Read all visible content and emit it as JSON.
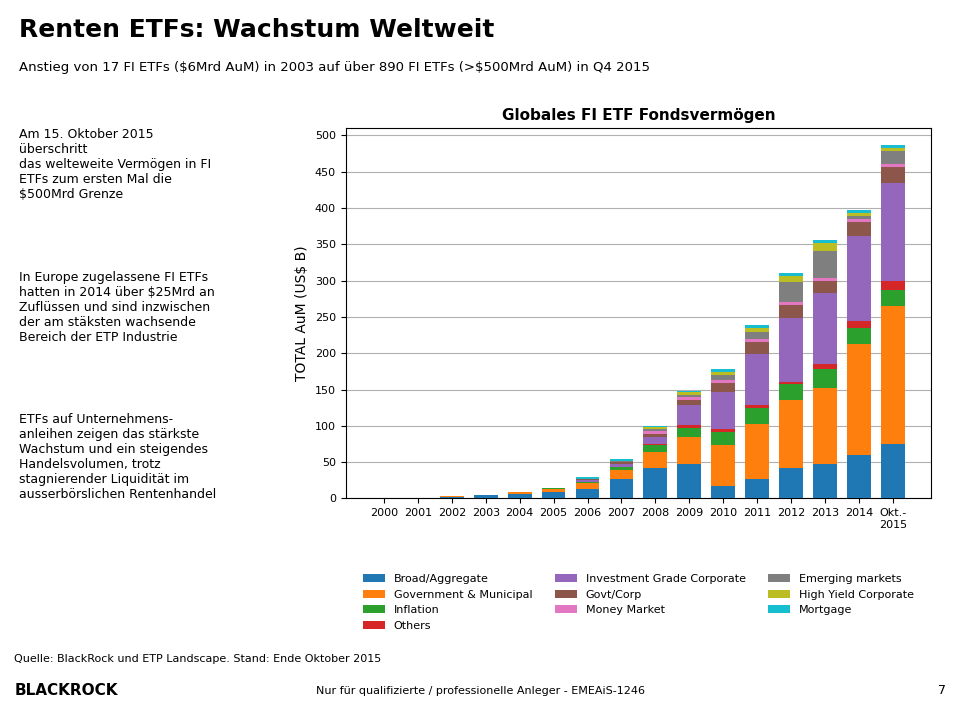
{
  "chart_data": {
    "type": "bar",
    "stacked": true,
    "title": "Renten ETFs: Wachstum Weltweit",
    "subtitle": "Anstieg von 17 FI ETFs ($6Mrd AuM) in 2003 auf über 890 FI ETFs (>$500Mrd AuM) in Q4 2015",
    "y_label": "TOTAL AuM (US$ B)",
    "annotations": [
      "Globales FI ETF Fondsvermögen",
      "Am 15. Oktober 2015\nüberschritt\ndas welteweite Vermögen in FI\nETFs zum ersten Mal die\n$500Mrd Grenze",
      "In Europe zugelassene FI ETFs\nhatten in 2014 über $25Mrd an\nZuflüssen und sind inzwischen\nder am stäksten wachsende\nBereich der ETP Industrie",
      "ETFs auf Unternehmens-\nanleihen zeigen das stärkste\nWachstum und ein steigendes\nHandelsvolumen, trotz\nstagnierender Liquidität im\nausserbörslichen Rentenhandel",
      "Quelle: BlackRock und ETP Landscape. Stand: Ende Oktober 2015",
      "BLACKROCK",
      "Nur für qualifizierte / professionelle Anleger - EMEAiS-1246",
      "7"
    ],
    "categories": [
      "2000",
      "2001",
      "2002",
      "2003",
      "2004",
      "2005",
      "2006",
      "2007",
      "2008",
      "2009",
      "2010",
      "2011",
      "2012",
      "2013",
      "2014",
      "Okt.-\n2015"
    ],
    "series": [
      {
        "name": "Broad/Aggregate",
        "values": [
          0.5,
          0.5,
          2,
          4,
          6,
          9,
          13,
          27,
          42,
          48,
          17,
          27,
          42,
          48,
          60,
          75
        ]
      },
      {
        "name": "Government & Municipal",
        "values": [
          0.5,
          0.5,
          1,
          1,
          3,
          4,
          8,
          12,
          22,
          36,
          57,
          76,
          93,
          104,
          153,
          190
        ]
      },
      {
        "name": "Inflation",
        "values": [
          0,
          0,
          0,
          0,
          0,
          1,
          2,
          4,
          9,
          13,
          18,
          22,
          22,
          26,
          22,
          22
        ]
      },
      {
        "name": "Others",
        "values": [
          0,
          0,
          0,
          0,
          0,
          0,
          0,
          0,
          2,
          4,
          4,
          4,
          4,
          7,
          9,
          12
        ]
      },
      {
        "name": "Investment Grade Corporate",
        "values": [
          0,
          0,
          0,
          0,
          0,
          1,
          3,
          5,
          10,
          27,
          50,
          70,
          88,
          98,
          118,
          135
        ]
      },
      {
        "name": "Govt/Corp",
        "values": [
          0,
          0,
          0,
          0,
          0,
          0,
          1,
          2,
          4,
          7,
          13,
          17,
          17,
          17,
          19,
          22
        ]
      },
      {
        "name": "Money Market",
        "values": [
          0,
          0,
          0,
          0,
          0,
          0,
          0,
          0,
          4,
          4,
          4,
          4,
          4,
          4,
          4,
          4
        ]
      },
      {
        "name": "Emerging markets",
        "values": [
          0,
          0,
          0,
          0,
          0,
          0,
          0,
          1,
          3,
          4,
          7,
          9,
          28,
          37,
          4,
          18
        ]
      },
      {
        "name": "High Yield Corporate",
        "values": [
          0,
          0,
          0,
          0,
          0,
          0,
          0,
          1,
          2,
          3,
          4,
          6,
          8,
          11,
          4,
          5
        ]
      },
      {
        "name": "Mortgage",
        "values": [
          0,
          0,
          0,
          0,
          0,
          0,
          2,
          2,
          2,
          2,
          4,
          4,
          4,
          4,
          4,
          4
        ]
      }
    ],
    "ylim": [
      0,
      510
    ],
    "yticks": [
      0,
      50,
      100,
      150,
      200,
      250,
      300,
      350,
      400,
      450,
      500
    ],
    "grid": true,
    "legend": "lower center"
  }
}
